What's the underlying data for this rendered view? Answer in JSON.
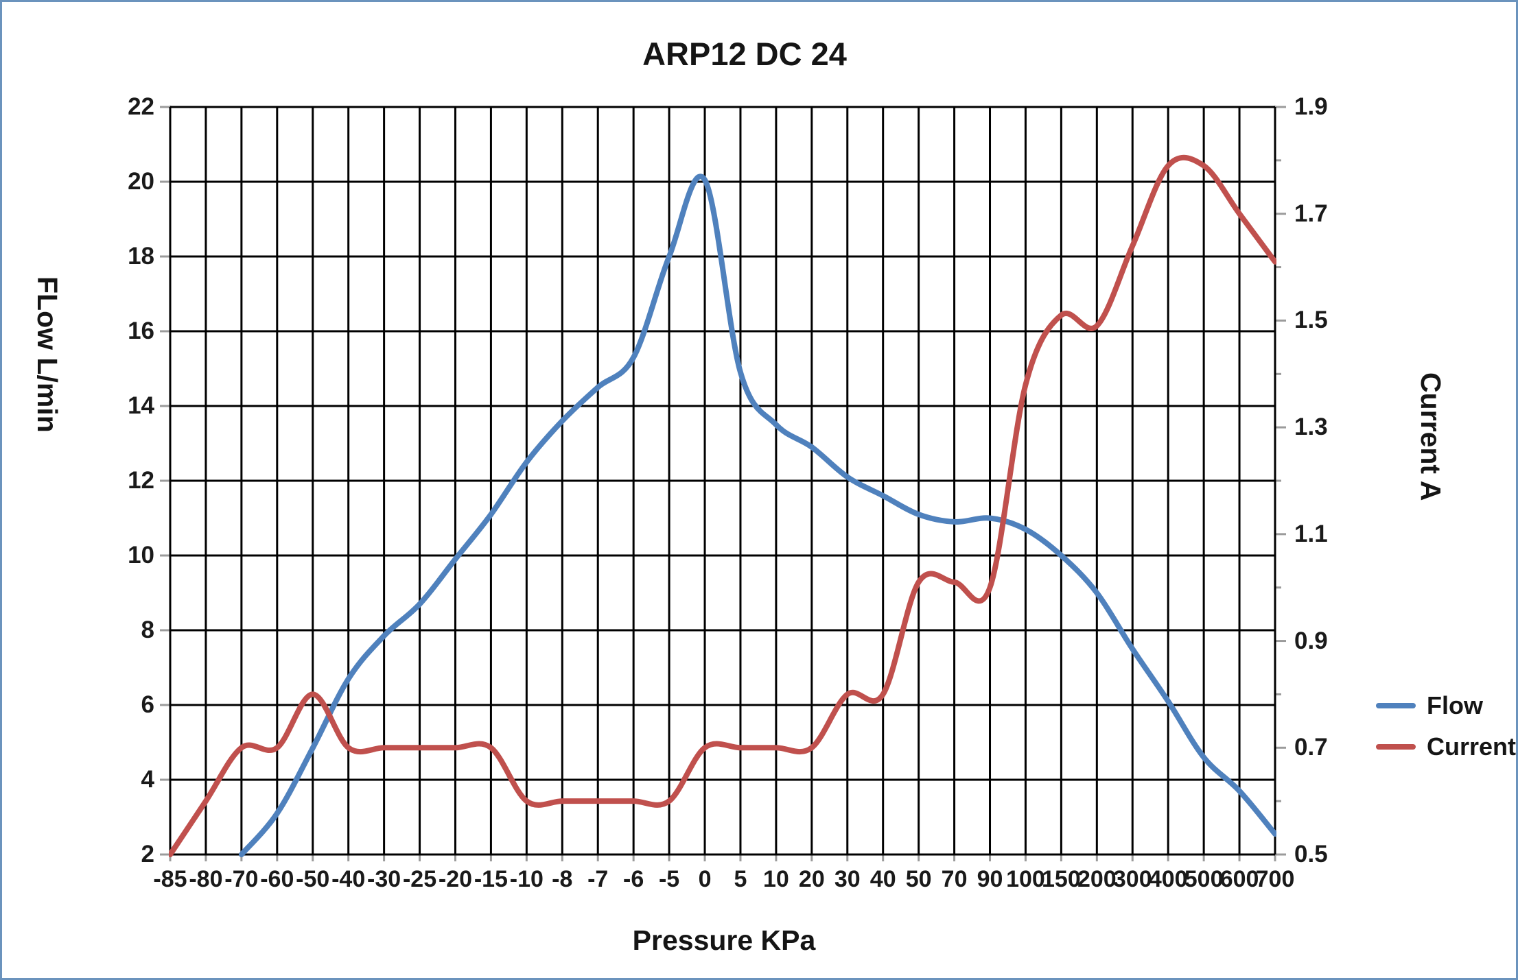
{
  "title": "ARP12 DC 24",
  "axes": {
    "x": {
      "title": "Pressure KPa",
      "tick_labels": [
        "-85",
        "-80",
        "-70",
        "-60",
        "-50",
        "-40",
        "-30",
        "-25",
        "-20",
        "-15",
        "-10",
        "-8",
        "-7",
        "-6",
        "-5",
        "0",
        "5",
        "10",
        "20",
        "30",
        "40",
        "50",
        "70",
        "90",
        "100",
        "150",
        "200",
        "300",
        "400",
        "500",
        "600",
        "700"
      ]
    },
    "y_left": {
      "title": "FLow  L/min",
      "min": 2,
      "max": 22,
      "tick_step": 2,
      "tick_labels": [
        "22",
        "20",
        "18",
        "16",
        "14",
        "12",
        "10",
        "8",
        "6",
        "4",
        "2"
      ]
    },
    "y_right": {
      "title": "Current  A",
      "min": 0.5,
      "max": 1.9,
      "tick_step": 0.2,
      "minor_tick_step": 0.1,
      "tick_labels": [
        "1.9",
        "1.7",
        "1.5",
        "1.3",
        "1.1",
        "0.9",
        "0.7",
        "0.5"
      ]
    }
  },
  "legend": [
    {
      "label": "Flow",
      "color": "#4f81bd"
    },
    {
      "label": "Current",
      "color": "#c0504d"
    }
  ],
  "colors": {
    "flow_line": "#4f81bd",
    "current_line": "#c0504d",
    "gridline": "#000000",
    "axis_line": "#9b9b9b",
    "frame_border": "#6b93bd",
    "text": "#1a1a1a"
  },
  "chart_data": {
    "type": "line",
    "title": "ARP12 DC 24",
    "xlabel": "Pressure KPa",
    "ylabel_left": "FLow  L/min",
    "ylabel_right": "Current  A",
    "categories": [
      "-85",
      "-80",
      "-70",
      "-60",
      "-50",
      "-40",
      "-30",
      "-25",
      "-20",
      "-15",
      "-10",
      "-8",
      "-7",
      "-6",
      "-5",
      "0",
      "5",
      "10",
      "20",
      "30",
      "40",
      "50",
      "70",
      "90",
      "100",
      "150",
      "200",
      "300",
      "400",
      "500",
      "600",
      "700"
    ],
    "series": [
      {
        "name": "Flow",
        "axis": "left",
        "color": "#4f81bd",
        "values": [
          null,
          null,
          2.0,
          3.1,
          4.85,
          6.7,
          7.85,
          8.7,
          9.9,
          11.1,
          12.5,
          13.6,
          14.5,
          15.3,
          18.0,
          20.05,
          14.9,
          13.5,
          12.9,
          12.1,
          11.6,
          11.1,
          10.9,
          11.0,
          10.7,
          10.0,
          9.0,
          7.5,
          6.1,
          4.6,
          3.7,
          2.55
        ]
      },
      {
        "name": "Current",
        "axis": "right",
        "color": "#c0504d",
        "values": [
          0.5,
          0.6,
          0.7,
          0.7,
          0.8,
          0.7,
          0.7,
          0.7,
          0.7,
          0.7,
          0.6,
          0.6,
          0.6,
          0.6,
          0.6,
          0.7,
          0.7,
          0.7,
          0.7,
          0.8,
          0.8,
          1.01,
          1.01,
          1.0,
          1.38,
          1.51,
          1.49,
          1.64,
          1.79,
          1.79,
          1.7,
          1.61
        ]
      }
    ],
    "ylim_left": [
      2,
      22
    ],
    "ylim_right": [
      0.5,
      1.9
    ],
    "grid": true,
    "legend_position": "right"
  }
}
